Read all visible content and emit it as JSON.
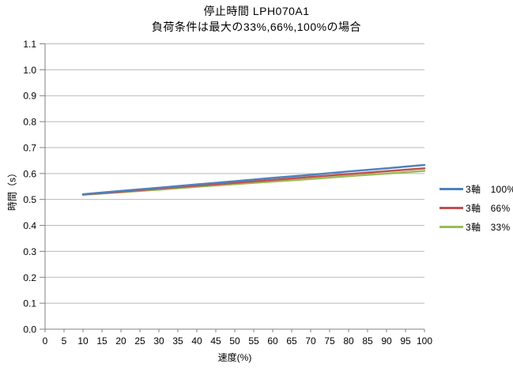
{
  "chart_data": {
    "type": "line",
    "title": "停止時間 LPH070A1",
    "subtitle": "負荷条件は最大の33%,66%,100%の場合",
    "xlabel": "速度(%)",
    "ylabel": "時間（s）",
    "xlim": [
      0,
      100
    ],
    "ylim": [
      0,
      1.1
    ],
    "x_ticks": [
      0,
      5,
      10,
      15,
      20,
      25,
      30,
      35,
      40,
      45,
      50,
      55,
      60,
      65,
      70,
      75,
      80,
      85,
      90,
      95,
      100
    ],
    "y_ticks": [
      "0.0",
      "0.1",
      "0.2",
      "0.3",
      "0.4",
      "0.5",
      "0.6",
      "0.7",
      "0.8",
      "0.9",
      "1.0",
      "1.1"
    ],
    "grid": "horizontal-gridlines-on",
    "legend_position": "right",
    "x": [
      10,
      20,
      30,
      40,
      50,
      60,
      70,
      80,
      90,
      100
    ],
    "series": [
      {
        "label": "3軸　100%",
        "color": "#4F81BD",
        "values": [
          0.52,
          0.533,
          0.545,
          0.558,
          0.57,
          0.583,
          0.595,
          0.608,
          0.62,
          0.633
        ]
      },
      {
        "label": "3軸　66%",
        "color": "#C0504D",
        "values": [
          0.519,
          0.53,
          0.542,
          0.553,
          0.564,
          0.575,
          0.587,
          0.598,
          0.609,
          0.62
        ]
      },
      {
        "label": "3軸　33%",
        "color": "#9BBB59",
        "values": [
          0.518,
          0.528,
          0.538,
          0.549,
          0.559,
          0.569,
          0.579,
          0.59,
          0.6,
          0.61
        ]
      }
    ],
    "colors": {
      "gridline": "#b9b9b9",
      "axis": "#808080",
      "text": "#000000"
    }
  }
}
